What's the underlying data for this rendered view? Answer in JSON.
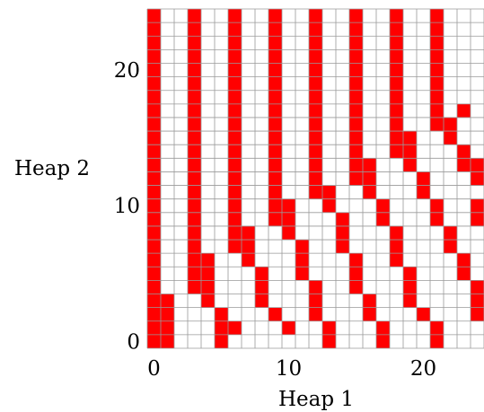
{
  "chart_data": {
    "type": "heatmap",
    "title": "",
    "xlabel": "Heap 1",
    "ylabel": "Heap 2",
    "x_ticks": [
      0,
      10,
      20
    ],
    "y_ticks": [
      0,
      10,
      20
    ],
    "x_range": [
      0,
      24
    ],
    "y_range": [
      0,
      24
    ],
    "grid": true,
    "colors": {
      "filled": "#ff0000",
      "empty": "#ffffff",
      "grid": "#9a9a9a"
    },
    "cell_value_meaning": "1 = filled (red), 0 = empty (white)",
    "rows_top_to_bottom": [
      [
        1,
        0,
        0,
        1,
        0,
        0,
        1,
        0,
        0,
        1,
        0,
        0,
        1,
        0,
        0,
        1,
        0,
        0,
        1,
        0,
        0,
        1,
        0,
        0,
        0
      ],
      [
        1,
        0,
        0,
        1,
        0,
        0,
        1,
        0,
        0,
        1,
        0,
        0,
        1,
        0,
        0,
        1,
        0,
        0,
        1,
        0,
        0,
        1,
        0,
        0,
        0
      ],
      [
        1,
        0,
        0,
        1,
        0,
        0,
        1,
        0,
        0,
        1,
        0,
        0,
        1,
        0,
        0,
        1,
        0,
        0,
        1,
        0,
        0,
        1,
        0,
        0,
        0
      ],
      [
        1,
        0,
        0,
        1,
        0,
        0,
        1,
        0,
        0,
        1,
        0,
        0,
        1,
        0,
        0,
        1,
        0,
        0,
        1,
        0,
        0,
        1,
        0,
        0,
        0
      ],
      [
        1,
        0,
        0,
        1,
        0,
        0,
        1,
        0,
        0,
        1,
        0,
        0,
        1,
        0,
        0,
        1,
        0,
        0,
        1,
        0,
        0,
        1,
        0,
        0,
        0
      ],
      [
        1,
        0,
        0,
        1,
        0,
        0,
        1,
        0,
        0,
        1,
        0,
        0,
        1,
        0,
        0,
        1,
        0,
        0,
        1,
        0,
        0,
        1,
        0,
        0,
        0
      ],
      [
        1,
        0,
        0,
        1,
        0,
        0,
        1,
        0,
        0,
        1,
        0,
        0,
        1,
        0,
        0,
        1,
        0,
        0,
        1,
        0,
        0,
        1,
        0,
        0,
        0
      ],
      [
        1,
        0,
        0,
        1,
        0,
        0,
        1,
        0,
        0,
        1,
        0,
        0,
        1,
        0,
        0,
        1,
        0,
        0,
        1,
        0,
        0,
        1,
        0,
        1,
        0
      ],
      [
        1,
        0,
        0,
        1,
        0,
        0,
        1,
        0,
        0,
        1,
        0,
        0,
        1,
        0,
        0,
        1,
        0,
        0,
        1,
        0,
        0,
        1,
        1,
        0,
        0
      ],
      [
        1,
        0,
        0,
        1,
        0,
        0,
        1,
        0,
        0,
        1,
        0,
        0,
        1,
        0,
        0,
        1,
        0,
        0,
        1,
        1,
        0,
        0,
        1,
        0,
        0
      ],
      [
        1,
        0,
        0,
        1,
        0,
        0,
        1,
        0,
        0,
        1,
        0,
        0,
        1,
        0,
        0,
        1,
        0,
        0,
        1,
        1,
        0,
        0,
        0,
        1,
        0
      ],
      [
        1,
        0,
        0,
        1,
        0,
        0,
        1,
        0,
        0,
        1,
        0,
        0,
        1,
        0,
        0,
        1,
        1,
        0,
        0,
        1,
        0,
        0,
        0,
        1,
        1
      ],
      [
        1,
        0,
        0,
        1,
        0,
        0,
        1,
        0,
        0,
        1,
        0,
        0,
        1,
        0,
        0,
        1,
        1,
        0,
        0,
        0,
        1,
        0,
        0,
        0,
        1
      ],
      [
        1,
        0,
        0,
        1,
        0,
        0,
        1,
        0,
        0,
        1,
        0,
        0,
        1,
        1,
        0,
        0,
        1,
        0,
        0,
        0,
        1,
        0,
        0,
        0,
        0
      ],
      [
        1,
        0,
        0,
        1,
        0,
        0,
        1,
        0,
        0,
        1,
        1,
        0,
        0,
        1,
        0,
        0,
        0,
        1,
        0,
        0,
        0,
        1,
        0,
        0,
        1
      ],
      [
        1,
        0,
        0,
        1,
        0,
        0,
        1,
        0,
        0,
        1,
        1,
        0,
        0,
        0,
        1,
        0,
        0,
        1,
        0,
        0,
        0,
        1,
        0,
        0,
        1
      ],
      [
        1,
        0,
        0,
        1,
        0,
        0,
        1,
        1,
        0,
        0,
        1,
        0,
        0,
        0,
        1,
        0,
        0,
        0,
        1,
        0,
        0,
        0,
        1,
        0,
        0
      ],
      [
        1,
        0,
        0,
        1,
        0,
        0,
        1,
        1,
        0,
        0,
        0,
        1,
        0,
        0,
        1,
        0,
        0,
        0,
        1,
        0,
        0,
        0,
        1,
        0,
        0
      ],
      [
        1,
        0,
        0,
        1,
        1,
        0,
        0,
        1,
        0,
        0,
        0,
        1,
        0,
        0,
        0,
        1,
        0,
        0,
        1,
        0,
        0,
        0,
        0,
        1,
        0
      ],
      [
        1,
        0,
        0,
        1,
        1,
        0,
        0,
        0,
        1,
        0,
        0,
        1,
        0,
        0,
        0,
        1,
        0,
        0,
        0,
        1,
        0,
        0,
        0,
        1,
        0
      ],
      [
        1,
        0,
        0,
        1,
        1,
        0,
        0,
        0,
        1,
        0,
        0,
        0,
        1,
        0,
        0,
        1,
        0,
        0,
        0,
        1,
        0,
        0,
        0,
        0,
        1
      ],
      [
        1,
        1,
        0,
        0,
        1,
        0,
        0,
        0,
        1,
        0,
        0,
        0,
        1,
        0,
        0,
        0,
        1,
        0,
        0,
        1,
        0,
        0,
        0,
        0,
        1
      ],
      [
        1,
        1,
        0,
        0,
        0,
        1,
        0,
        0,
        0,
        1,
        0,
        0,
        1,
        0,
        0,
        0,
        1,
        0,
        0,
        0,
        1,
        0,
        0,
        0,
        1
      ],
      [
        1,
        1,
        0,
        0,
        0,
        1,
        1,
        0,
        0,
        0,
        1,
        0,
        0,
        1,
        0,
        0,
        0,
        1,
        0,
        0,
        0,
        1,
        0,
        0,
        0
      ],
      [
        1,
        1,
        0,
        0,
        0,
        1,
        0,
        0,
        0,
        0,
        0,
        0,
        0,
        1,
        0,
        0,
        0,
        1,
        0,
        0,
        0,
        1,
        0,
        0,
        0
      ]
    ]
  }
}
